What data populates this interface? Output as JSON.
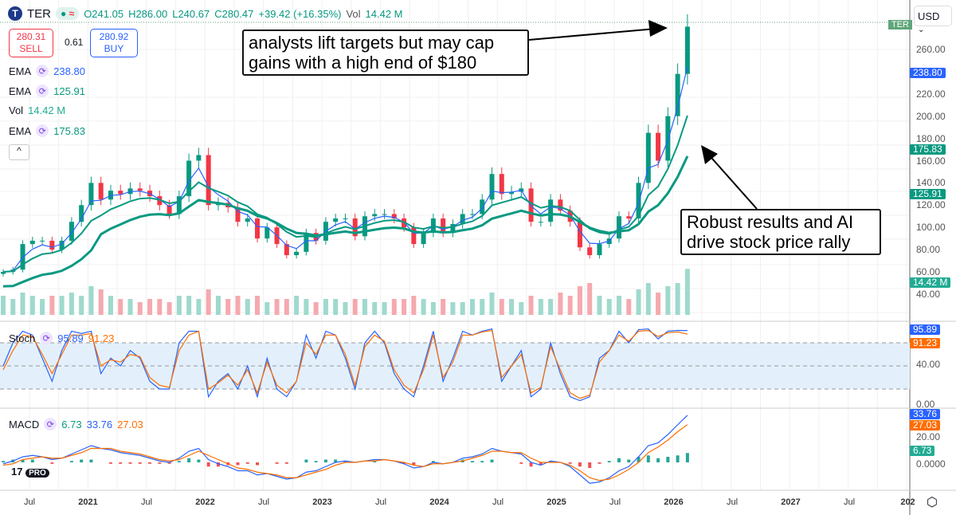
{
  "header": {
    "symbol": "TER",
    "open": "O241.05",
    "high": "H286.00",
    "low": "L240.67",
    "close": "C280.47",
    "change": "+39.42 (+16.35%)",
    "vol_label": "Vol",
    "vol": "14.42 M"
  },
  "trade": {
    "sell_price": "280.31",
    "sell_label": "SELL",
    "spread": "0.61",
    "buy_price": "280.92",
    "buy_label": "BUY"
  },
  "indicators": [
    {
      "name": "EMA",
      "value": "238.80",
      "color": "#2962ff"
    },
    {
      "name": "EMA",
      "value": "125.91",
      "color": "#089981"
    },
    {
      "name": "Vol",
      "value": "14.42 M",
      "color": "#22ab94"
    },
    {
      "name": "EMA",
      "value": "175.83",
      "color": "#089981"
    }
  ],
  "stoch": {
    "label": "Stoch",
    "k": "95.89",
    "d": "91.23"
  },
  "macd": {
    "label": "MACD",
    "hist": "6.73",
    "macd": "33.76",
    "signal": "27.03"
  },
  "currency": "USD",
  "annotations": [
    "analysts lift targets but may cap gains with a high end of $180",
    "Robust results and AI drive stock price rally"
  ],
  "symbol_tag": "TER",
  "colors": {
    "up": "#089981",
    "down": "#f23645",
    "ema_fast": "#2962ff",
    "ema_slow": "#089981",
    "signal": "#ff6d00"
  },
  "chart_data": {
    "type": "candlestick",
    "price_ticks": [
      "260.00",
      "220.00",
      "200.00",
      "180.00",
      "160.00",
      "140.00",
      "120.00",
      "100.00",
      "80.00",
      "60.00",
      "40.00"
    ],
    "price_tags": [
      {
        "v": "238.80",
        "c": "#2962ff",
        "p": 238.8
      },
      {
        "v": "175.83",
        "c": "#089981",
        "p": 175.83
      },
      {
        "v": "125.91",
        "c": "#089981",
        "p": 125.91
      },
      {
        "v": "14.42 M",
        "c": "#22ab94",
        "p": 48
      }
    ],
    "stoch_ticks": [
      "40.00",
      "0.00"
    ],
    "stoch_tags": [
      {
        "v": "95.89",
        "c": "#2962ff"
      },
      {
        "v": "91.23",
        "c": "#ff6d00"
      }
    ],
    "macd_ticks": [
      "20.00",
      "0.0000"
    ],
    "macd_tags": [
      {
        "v": "33.76",
        "c": "#2962ff"
      },
      {
        "v": "27.03",
        "c": "#ff6d00"
      },
      {
        "v": "6.73",
        "c": "#22ab94"
      }
    ],
    "x_labels": [
      "Jul",
      "2021",
      "Jul",
      "2022",
      "Jul",
      "2023",
      "Jul",
      "2024",
      "Jul",
      "2025",
      "Jul",
      "2026",
      "Jul",
      "2027",
      "Jul",
      "202"
    ],
    "closes": [
      60,
      62,
      85,
      88,
      88,
      80,
      88,
      105,
      120,
      140,
      125,
      133,
      130,
      135,
      133,
      128,
      120,
      112,
      128,
      160,
      165,
      120,
      122,
      118,
      105,
      108,
      90,
      100,
      85,
      75,
      78,
      95,
      88,
      105,
      108,
      108,
      92,
      110,
      112,
      112,
      108,
      100,
      85,
      95,
      108,
      95,
      103,
      112,
      112,
      125,
      148,
      130,
      132,
      135,
      105,
      105,
      125,
      115,
      105,
      82,
      75,
      85,
      90,
      110,
      108,
      140,
      185,
      160,
      200,
      238,
      280.47
    ],
    "stoch_k": [
      50,
      80,
      95,
      90,
      60,
      30,
      70,
      95,
      92,
      95,
      40,
      60,
      50,
      70,
      60,
      30,
      20,
      20,
      80,
      95,
      95,
      10,
      30,
      40,
      20,
      50,
      10,
      60,
      20,
      10,
      30,
      90,
      60,
      95,
      90,
      60,
      20,
      80,
      95,
      80,
      40,
      20,
      10,
      50,
      95,
      30,
      60,
      95,
      90,
      95,
      98,
      30,
      50,
      70,
      10,
      20,
      80,
      40,
      10,
      5,
      10,
      60,
      70,
      95,
      80,
      97,
      98,
      85,
      95,
      96,
      95.89
    ],
    "stoch_d": [
      45,
      70,
      90,
      88,
      65,
      40,
      65,
      90,
      90,
      92,
      50,
      58,
      55,
      65,
      62,
      35,
      25,
      22,
      70,
      90,
      95,
      20,
      28,
      38,
      25,
      45,
      15,
      55,
      25,
      15,
      30,
      80,
      65,
      90,
      90,
      65,
      25,
      75,
      90,
      82,
      45,
      25,
      15,
      45,
      90,
      35,
      55,
      90,
      90,
      94,
      96,
      35,
      50,
      65,
      15,
      22,
      75,
      45,
      15,
      8,
      12,
      55,
      70,
      90,
      82,
      95,
      96,
      88,
      93,
      94,
      91.23
    ],
    "macd_line": [
      -1,
      1,
      4,
      5,
      4,
      2,
      3,
      6,
      9,
      12,
      10,
      9,
      7,
      6,
      5,
      3,
      1,
      0,
      3,
      8,
      10,
      2,
      -1,
      -3,
      -6,
      -6,
      -9,
      -8,
      -10,
      -12,
      -11,
      -7,
      -6,
      -3,
      0,
      1,
      0,
      1,
      2,
      2,
      1,
      -1,
      -4,
      -3,
      0,
      -1,
      0,
      3,
      4,
      6,
      10,
      8,
      7,
      6,
      0,
      -2,
      1,
      0,
      -3,
      -9,
      -15,
      -14,
      -11,
      -6,
      -3,
      4,
      12,
      14,
      20,
      27,
      33.76
    ],
    "macd_signal": [
      -2,
      -1,
      2,
      3,
      4,
      3,
      3,
      5,
      7,
      10,
      10,
      10,
      8,
      7,
      6,
      4,
      2,
      1,
      2,
      5,
      8,
      5,
      2,
      -1,
      -4,
      -5,
      -7,
      -8,
      -9,
      -11,
      -11,
      -9,
      -7,
      -5,
      -2,
      0,
      0,
      1,
      1,
      2,
      1,
      0,
      -2,
      -3,
      -1,
      -1,
      0,
      1,
      3,
      5,
      8,
      8,
      7,
      7,
      3,
      0,
      0,
      0,
      -2,
      -6,
      -11,
      -13,
      -12,
      -9,
      -5,
      0,
      7,
      11,
      16,
      22,
      27.03
    ],
    "volume_M": [
      6,
      5,
      7,
      6,
      5,
      6,
      6,
      7,
      6,
      9,
      8,
      6,
      5,
      5,
      4,
      5,
      5,
      4,
      6,
      6,
      5,
      8,
      6,
      5,
      6,
      5,
      6,
      4,
      5,
      5,
      6,
      5,
      4,
      5,
      5,
      4,
      5,
      5,
      4,
      4,
      5,
      5,
      6,
      5,
      4,
      5,
      4,
      4,
      5,
      5,
      7,
      5,
      5,
      4,
      6,
      5,
      5,
      7,
      6,
      9,
      10,
      6,
      5,
      6,
      5,
      8,
      10,
      7,
      9,
      10,
      14.42
    ]
  }
}
